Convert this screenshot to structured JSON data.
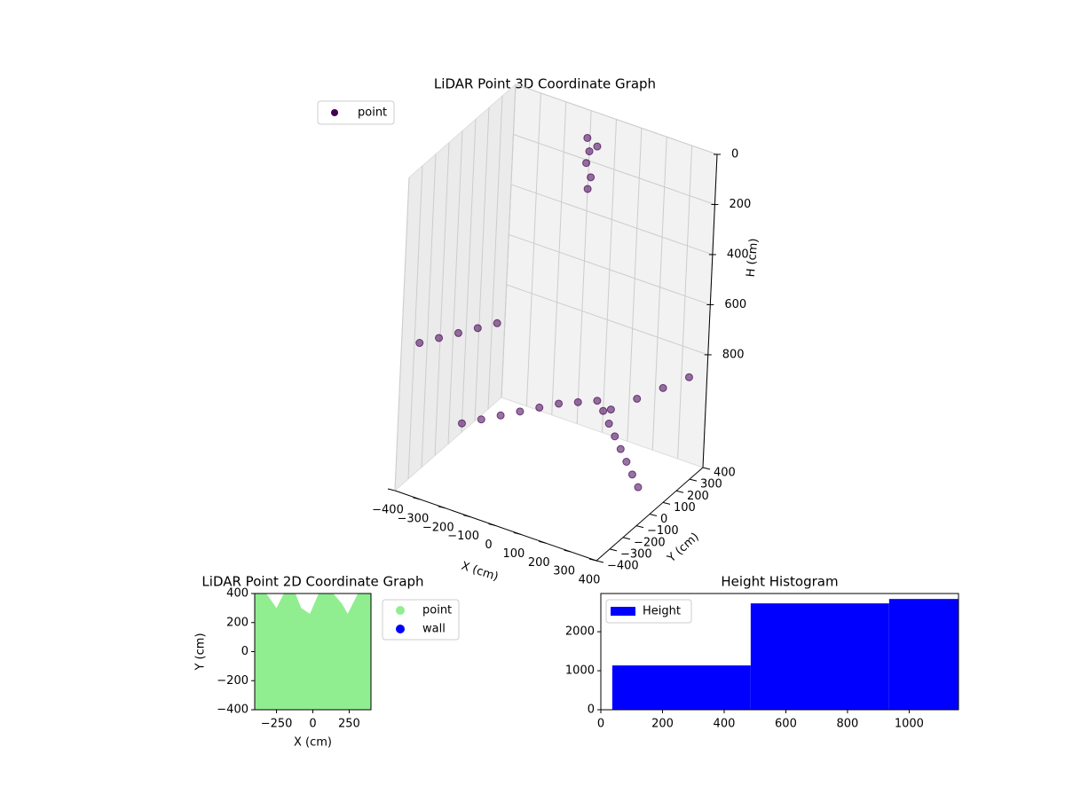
{
  "chart_data": [
    {
      "type": "scatter3d",
      "title": "LiDAR Point 3D Coordinate Graph",
      "x_label": "X (cm)",
      "y_label": "Y (cm)",
      "z_label": "H (cm)",
      "series": [
        {
          "name": "point",
          "color": "#440154",
          "x": [
            -350,
            -300,
            -250,
            -200,
            -150,
            -100,
            -50,
            0,
            50,
            100,
            150,
            200,
            250,
            300,
            350,
            -380,
            -380,
            -380,
            -380,
            -380,
            380,
            380,
            380,
            380,
            -100,
            -100,
            -90,
            -90,
            -80,
            -60
          ],
          "y": [
            0,
            50,
            100,
            150,
            200,
            250,
            300,
            350,
            300,
            250,
            200,
            150,
            100,
            50,
            0,
            -300,
            -150,
            0,
            150,
            300,
            -300,
            -100,
            100,
            300,
            380,
            380,
            380,
            380,
            380,
            380
          ],
          "z": [
            1150,
            1140,
            1130,
            1120,
            1110,
            1100,
            1100,
            1100,
            1100,
            1110,
            1120,
            1130,
            1140,
            1150,
            1160,
            700,
            750,
            800,
            850,
            900,
            700,
            750,
            800,
            850,
            100,
            200,
            300,
            150,
            250,
            120
          ]
        }
      ],
      "xlim": [
        -400,
        400
      ],
      "ylim": [
        -400,
        400
      ],
      "zlim": [
        0,
        1250
      ],
      "z_inverted": true,
      "xticks": [
        {
          "value": -400,
          "label": "−400"
        },
        {
          "value": -300,
          "label": "−300"
        },
        {
          "value": -200,
          "label": "−200"
        },
        {
          "value": -100,
          "label": "−100"
        },
        0,
        100,
        200,
        300,
        400
      ],
      "yticks": [
        {
          "value": -400,
          "label": "−400"
        },
        {
          "value": -300,
          "label": "−300"
        },
        {
          "value": -200,
          "label": "−200"
        },
        {
          "value": -100,
          "label": "−100"
        },
        0,
        100,
        200,
        300,
        400
      ],
      "zticks": [
        0,
        200,
        400,
        600,
        800
      ],
      "legend": "upper left"
    },
    {
      "type": "scatter",
      "title": "LiDAR Point 2D Coordinate Graph",
      "x_label": "X (cm)",
      "y_label": "Y (cm)",
      "series": [
        {
          "name": "point",
          "color": "#90ee90",
          "x": [
            -400,
            400,
            400,
            310,
            240,
            200,
            140,
            40,
            -20,
            -80,
            -120,
            -200,
            -250,
            -320,
            -400
          ],
          "y": [
            -400,
            -400,
            400,
            400,
            260,
            330,
            400,
            400,
            260,
            300,
            400,
            400,
            300,
            400,
            400
          ]
        },
        {
          "name": "wall",
          "color": "#0000ff",
          "x": [],
          "y": []
        }
      ],
      "xlim": [
        -400,
        400
      ],
      "ylim": [
        -400,
        400
      ],
      "xticks": [
        {
          "value": -250,
          "label": "−250"
        },
        0,
        250
      ],
      "yticks": [
        {
          "value": -400,
          "label": "−400"
        },
        {
          "value": -200,
          "label": "−200"
        },
        0,
        200,
        400
      ],
      "legend": "outside right"
    },
    {
      "type": "histogram",
      "title": "Height Histogram",
      "series": [
        {
          "name": "Height",
          "color": "#0000ff",
          "bins": [
            37,
            486,
            935,
            1160
          ],
          "values": [
            1136,
            2727,
            2840
          ]
        }
      ],
      "xlim": [
        0,
        1160
      ],
      "ylim": [
        0,
        2980
      ],
      "xticks": [
        0,
        200,
        400,
        600,
        800,
        1000
      ],
      "yticks": [
        0,
        1000,
        2000
      ],
      "legend": "upper left"
    }
  ]
}
